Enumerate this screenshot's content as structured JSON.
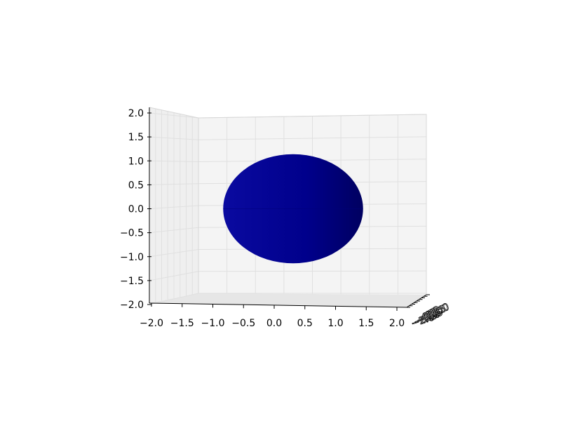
{
  "chart_data": {
    "type": "surface3d",
    "shape": "sphere",
    "center": {
      "x": 0.0,
      "y": 0.0,
      "z": 0.0
    },
    "radius": 0.75,
    "surface_color": "#00008b",
    "title": "",
    "xlabel": "",
    "ylabel": "",
    "zlabel": "",
    "xlim": [
      -2.0,
      2.0
    ],
    "ylim": [
      -2.0,
      2.0
    ],
    "zlim": [
      -2.0,
      2.0
    ],
    "grid": true,
    "x_ticks": [
      "−2.0",
      "−1.5",
      "−1.0",
      "−0.5",
      "0.0",
      "0.5",
      "1.0",
      "1.5",
      "2.0"
    ],
    "z_ticks": [
      "2.0",
      "1.5",
      "1.0",
      "0.5",
      "0.0",
      "−0.5",
      "−1.0",
      "−1.5",
      "−2.0"
    ],
    "depth_ticks": [
      "−2.0",
      "−1.5",
      "−1.0",
      "−0.5",
      "0.0",
      "0.5",
      "1.0",
      "1.5",
      "2.0"
    ]
  }
}
